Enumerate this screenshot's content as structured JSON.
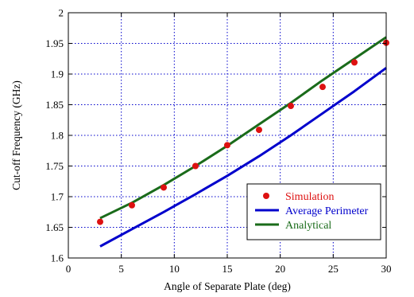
{
  "chart_data": {
    "type": "line",
    "xlabel": "Angle of Separate Plate (deg)",
    "ylabel": "Cut-off Frequency (GHz)",
    "xlim": [
      0,
      30
    ],
    "ylim": [
      1.6,
      2.0
    ],
    "xticks": [
      0,
      5,
      10,
      15,
      20,
      25,
      30
    ],
    "xtick_labels": [
      "0",
      "5",
      "10",
      "15",
      "20",
      "25",
      "30"
    ],
    "yticks": [
      1.6,
      1.65,
      1.7,
      1.75,
      1.8,
      1.85,
      1.9,
      1.95,
      2.0
    ],
    "ytick_labels": [
      "1.6",
      "1.65",
      "1.7",
      "1.75",
      "1.8",
      "1.85",
      "1.9",
      "1.95",
      "2"
    ],
    "grid": true,
    "grid_style": "dotted",
    "legend_position": "lower-right",
    "series": [
      {
        "name": "Simulation",
        "style": "marker",
        "color": "#dd1111",
        "legend_text_color": "#dd1111",
        "x": [
          3,
          6,
          9,
          12,
          15,
          18,
          21,
          24,
          27,
          30
        ],
        "y": [
          1.659,
          1.686,
          1.715,
          1.75,
          1.784,
          1.809,
          1.848,
          1.879,
          1.919,
          1.951
        ]
      },
      {
        "name": "Average Perimeter",
        "style": "line",
        "color": "#0000cc",
        "legend_text_color": "#0000cc",
        "x": [
          3,
          6,
          9,
          12,
          15,
          18,
          21,
          24,
          27,
          30
        ],
        "y": [
          1.619,
          1.647,
          1.675,
          1.704,
          1.734,
          1.766,
          1.8,
          1.836,
          1.872,
          1.91
        ]
      },
      {
        "name": "Analytical",
        "style": "line",
        "color": "#1a6b1a",
        "legend_text_color": "#1a6b1a",
        "x": [
          3,
          6,
          9,
          12,
          15,
          18,
          21,
          24,
          27,
          30
        ],
        "y": [
          1.665,
          1.69,
          1.719,
          1.75,
          1.783,
          1.818,
          1.853,
          1.89,
          1.925,
          1.96
        ]
      }
    ]
  }
}
